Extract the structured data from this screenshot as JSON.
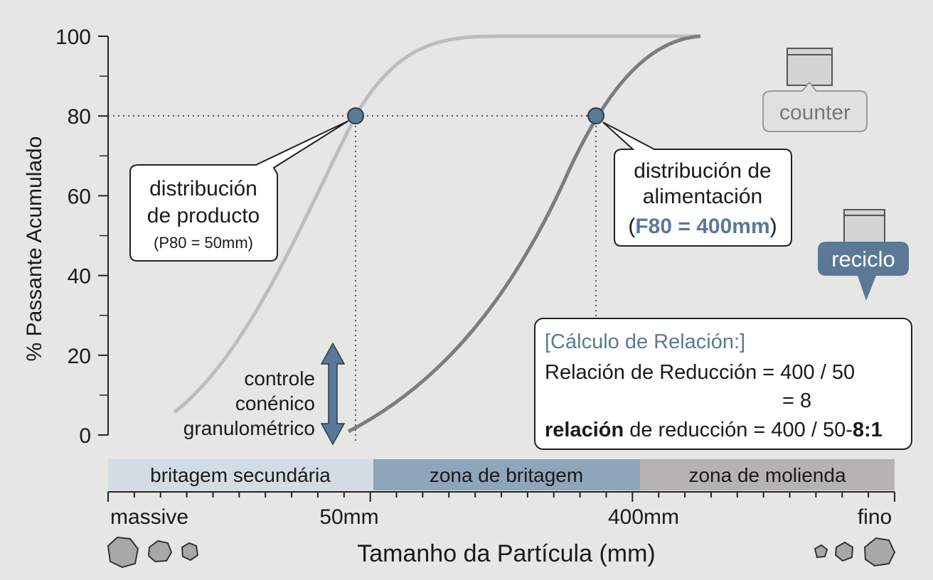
{
  "y_axis": {
    "label": "% Passante Acumulado",
    "ticks": [
      0,
      20,
      40,
      60,
      80,
      100
    ]
  },
  "x_axis": {
    "label": "Tamanho da Partícula (mm)",
    "ticks": [
      "massive",
      "50mm",
      "400mm",
      "fino"
    ]
  },
  "zones": [
    "britagem secundária",
    "zona de britagem",
    "zona de molienda"
  ],
  "callouts": {
    "product": {
      "lines": [
        "distribución",
        "de producto"
      ],
      "note": "(P80 = 50mm)"
    },
    "feed": {
      "lines": [
        "distribución de",
        "alimentación"
      ],
      "note_open": "(",
      "note": "F80 = 400mm",
      "note_close": ")"
    }
  },
  "control_label": [
    "controle",
    "conénico",
    "granulométrico"
  ],
  "calculation": {
    "title": "[Cálculo de Relación:]",
    "line1": "Relación de Reducción = 400 / 50",
    "line2": "=  8",
    "line3_bold": "relación",
    "line3": " de reducción = 400 / 50-",
    "line3_result": "8:1"
  },
  "icons": {
    "counter": "counter",
    "reciclo": "reciclo"
  }
}
